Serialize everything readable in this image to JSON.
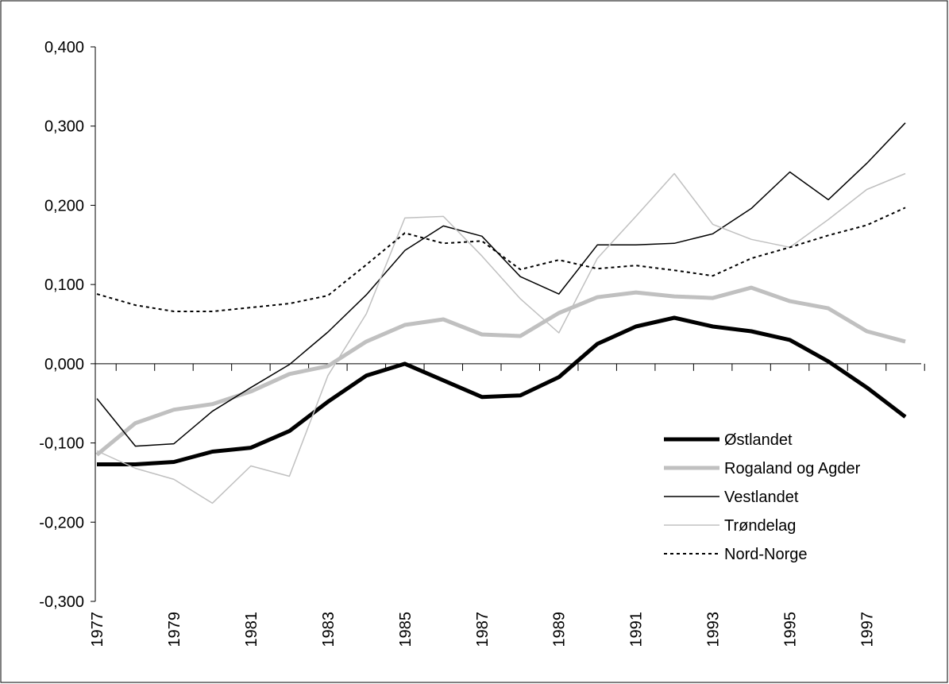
{
  "chart_data": {
    "type": "line",
    "categories": [
      "1977",
      null,
      "1979",
      null,
      "1981",
      null,
      "1983",
      null,
      "1985",
      null,
      "1987",
      null,
      "1989",
      null,
      "1991",
      null,
      "1993",
      null,
      "1995",
      null,
      "1997",
      null
    ],
    "ylim": [
      -0.3,
      0.4
    ],
    "yticks": [
      {
        "value": -0.3,
        "label": "-0,300"
      },
      {
        "value": -0.2,
        "label": "-0,200"
      },
      {
        "value": -0.1,
        "label": "-0,100"
      },
      {
        "value": 0,
        "label": "0,000"
      },
      {
        "value": 0.1,
        "label": "0,100"
      },
      {
        "value": 0.2,
        "label": "0,200"
      },
      {
        "value": 0.3,
        "label": "0,300"
      },
      {
        "value": 0.4,
        "label": "0,400"
      }
    ],
    "series": [
      {
        "name": "Østlandet",
        "color": "#000000",
        "values": [
          -0.127,
          -0.127,
          -0.124,
          -0.111,
          -0.106,
          -0.085,
          -0.048,
          -0.015,
          0.0,
          -0.021,
          -0.042,
          -0.04,
          -0.017,
          0.025,
          0.047,
          0.058,
          0.047,
          0.041,
          0.03,
          0.003,
          -0.03,
          -0.067
        ]
      },
      {
        "name": "Rogaland og Agder",
        "color": "#c0c0c0",
        "values": [
          -0.115,
          -0.075,
          -0.058,
          -0.051,
          -0.035,
          -0.013,
          -0.003,
          0.028,
          0.049,
          0.056,
          0.037,
          0.035,
          0.064,
          0.084,
          0.09,
          0.085,
          0.083,
          0.096,
          0.079,
          0.07,
          0.041,
          0.028
        ]
      },
      {
        "name": "Vestlandet",
        "color": "#000000",
        "values": [
          -0.044,
          -0.104,
          -0.101,
          -0.06,
          -0.03,
          -0.001,
          0.04,
          0.087,
          0.143,
          0.174,
          0.161,
          0.11,
          0.088,
          0.15,
          0.15,
          0.152,
          0.164,
          0.196,
          0.242,
          0.207,
          0.253,
          0.304
        ]
      },
      {
        "name": "Trøndelag",
        "color": "#c0c0c0",
        "values": [
          -0.11,
          -0.132,
          -0.146,
          -0.176,
          -0.129,
          -0.142,
          -0.015,
          0.063,
          0.184,
          0.186,
          0.136,
          0.082,
          0.039,
          0.133,
          0.186,
          0.24,
          0.176,
          0.157,
          0.147,
          0.182,
          0.22,
          0.24
        ]
      },
      {
        "name": "Nord-Norge",
        "color": "#000000",
        "values": [
          0.088,
          0.074,
          0.066,
          0.066,
          0.071,
          0.076,
          0.086,
          0.125,
          0.165,
          0.152,
          0.155,
          0.119,
          0.131,
          0.12,
          0.124,
          0.118,
          0.111,
          0.133,
          0.147,
          0.162,
          0.175,
          0.197
        ]
      }
    ],
    "legend": "lower right"
  }
}
